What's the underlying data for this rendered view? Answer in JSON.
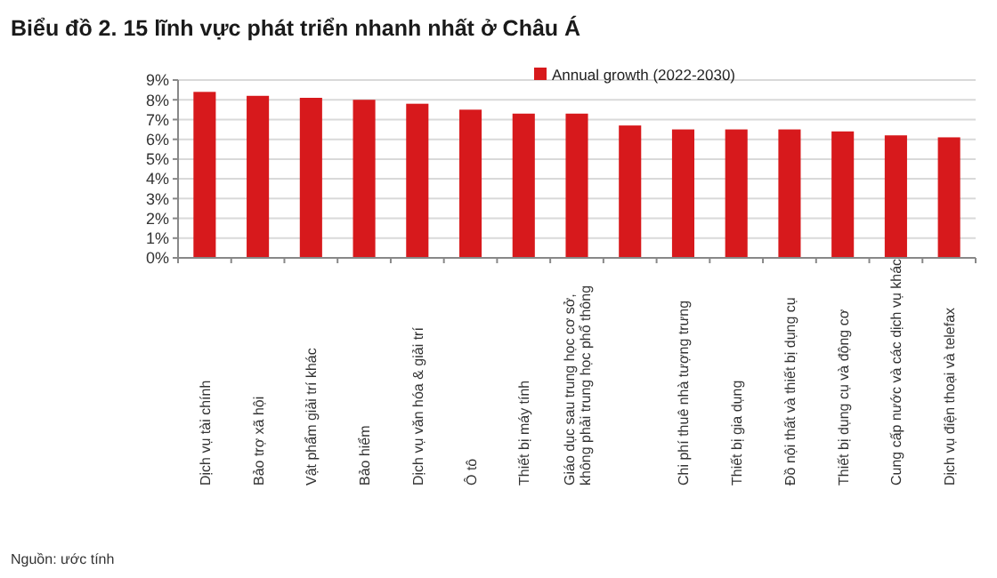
{
  "chart_data": {
    "type": "bar",
    "title": "Biểu đồ 2. 15 lĩnh vực phát triển nhanh nhất ở Châu Á",
    "categories": [
      "Dịch vụ tài chính",
      "Bảo trợ xã hội",
      "Vật phẩm giải trí khác",
      "Bảo hiểm",
      "Dịch vụ văn hóa & giải trí",
      "Ô tô",
      "Thiết bị máy tính",
      "Giáo dục sau trung học cơ sở, không phải trung học phổ thông",
      null,
      "Chi phí thuê nhà tượng trưng",
      "Thiết bị gia dụng",
      "Đồ nội thất và thiết bị dụng cụ",
      "Thiết bị dụng cụ và động cơ",
      "Cung cấp nước và các dịch vụ khác",
      "Dịch vụ điện thoại và telefax"
    ],
    "series": [
      {
        "name": "Annual growth (2022-2030)",
        "color": "#d7191c",
        "values": [
          8.4,
          8.2,
          8.1,
          8.0,
          7.8,
          7.5,
          7.3,
          7.3,
          6.7,
          6.5,
          6.5,
          6.5,
          6.4,
          6.2,
          6.1
        ]
      }
    ],
    "ylim": [
      0,
      9
    ],
    "yticks": [
      {
        "value": 0,
        "label": "0%"
      },
      {
        "value": 1,
        "label": "1%"
      },
      {
        "value": 2,
        "label": "2%"
      },
      {
        "value": 3,
        "label": "3%"
      },
      {
        "value": 4,
        "label": "4%"
      },
      {
        "value": 5,
        "label": "5%"
      },
      {
        "value": 6,
        "label": "6%"
      },
      {
        "value": 7,
        "label": "7%"
      },
      {
        "value": 8,
        "label": "8%"
      },
      {
        "value": 9,
        "label": "9%"
      }
    ],
    "grid": "y",
    "legend": "top",
    "annotations": [
      "Nguồn: ước tính"
    ]
  }
}
